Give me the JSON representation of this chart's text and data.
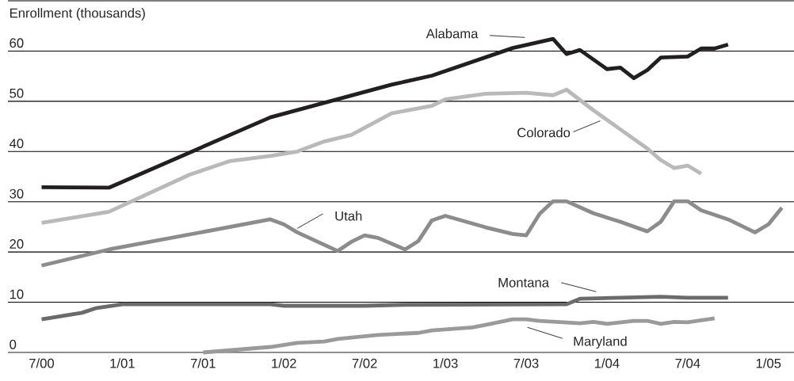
{
  "chart_data": {
    "type": "line",
    "ylabel": "Enrollment (thousands)",
    "xlim": [
      "2000-04-16",
      "2005-02-28"
    ],
    "ylim": [
      0,
      70
    ],
    "xticks": [
      {
        "value": "2000-07",
        "label": "7/00"
      },
      {
        "value": "2001-01",
        "label": "1/01"
      },
      {
        "value": "2001-07",
        "label": "7/01"
      },
      {
        "value": "2002-01",
        "label": "1/02"
      },
      {
        "value": "2002-07",
        "label": "7/02"
      },
      {
        "value": "2003-01",
        "label": "1/03"
      },
      {
        "value": "2003-07",
        "label": "7/03"
      },
      {
        "value": "2004-01",
        "label": "1/04"
      },
      {
        "value": "2004-07",
        "label": "7/04"
      },
      {
        "value": "2005-01",
        "label": "1/05"
      }
    ],
    "yticks": [
      0,
      10,
      20,
      30,
      40,
      50,
      60,
      {
        "value": 70,
        "label": null
      }
    ],
    "grid": "y",
    "series": [
      {
        "name": "Alabama",
        "color": "#231f20",
        "x": [
          "2000-07",
          "2000-12",
          "2001-12",
          "2002-09",
          "2002-12",
          "2003-06",
          "2003-09",
          "2003-10",
          "2003-11",
          "2004-01",
          "2004-02",
          "2004-03",
          "2004-04",
          "2004-05",
          "2004-07",
          "2004-08",
          "2004-09",
          "2004-10"
        ],
        "values": [
          32.9,
          32.8,
          46.8,
          53.3,
          55.1,
          60.6,
          62.4,
          59.4,
          60.2,
          56.4,
          56.7,
          54.6,
          56.2,
          58.7,
          58.9,
          60.5,
          60.5,
          61.3
        ]
      },
      {
        "name": "Colorado",
        "color": "#b8b9bb",
        "x": [
          "2000-07",
          "2000-12",
          "2001-06",
          "2001-09",
          "2001-12",
          "2002-02",
          "2002-04",
          "2002-06",
          "2002-09",
          "2002-12",
          "2003-01",
          "2003-04",
          "2003-07",
          "2003-09",
          "2003-10",
          "2003-12",
          "2004-02",
          "2004-04",
          "2004-05",
          "2004-06",
          "2004-07",
          "2004-08"
        ],
        "values": [
          25.8,
          28.0,
          35.4,
          38.1,
          39.1,
          40.0,
          42.0,
          43.3,
          47.6,
          49.1,
          50.4,
          51.5,
          51.7,
          51.2,
          52.3,
          48.2,
          44.4,
          40.6,
          38.3,
          36.7,
          37.2,
          35.6
        ]
      },
      {
        "name": "Utah",
        "color": "#8c8c8c",
        "x": [
          "2000-07",
          "2000-12",
          "2001-12",
          "2002-01",
          "2002-02",
          "2002-05",
          "2002-06",
          "2002-07",
          "2002-08",
          "2002-10",
          "2002-11",
          "2002-12",
          "2003-01",
          "2003-04",
          "2003-06",
          "2003-07",
          "2003-08",
          "2003-09",
          "2003-10",
          "2003-12",
          "2004-02",
          "2004-04",
          "2004-05",
          "2004-06",
          "2004-07",
          "2004-08",
          "2004-10",
          "2004-12",
          "2005-01",
          "2005-02"
        ],
        "values": [
          17.3,
          20.5,
          26.5,
          25.5,
          23.9,
          20.2,
          22.0,
          23.3,
          22.8,
          20.5,
          22.2,
          26.3,
          27.2,
          24.9,
          23.6,
          23.3,
          27.6,
          30.1,
          30.1,
          27.7,
          26.0,
          24.1,
          26.0,
          30.1,
          30.1,
          28.3,
          26.5,
          23.9,
          25.5,
          28.8
        ]
      },
      {
        "name": "Montana",
        "color": "#6b6b6b",
        "x": [
          "2000-07",
          "2000-10",
          "2000-11",
          "2001-01",
          "2001-12",
          "2002-01",
          "2002-07",
          "2002-10",
          "2003-10",
          "2003-11",
          "2004-05",
          "2004-07",
          "2004-10"
        ],
        "values": [
          6.6,
          7.9,
          8.8,
          9.6,
          9.6,
          9.3,
          9.3,
          9.5,
          9.6,
          10.7,
          11.1,
          10.9,
          10.9
        ]
      },
      {
        "name": "Maryland",
        "color": "#9a9a9a",
        "x": [
          "2001-07",
          "2001-12",
          "2002-02",
          "2002-04",
          "2002-05",
          "2002-08",
          "2002-11",
          "2002-12",
          "2003-03",
          "2003-04",
          "2003-06",
          "2003-07",
          "2003-08",
          "2003-11",
          "2003-12",
          "2004-01",
          "2004-03",
          "2004-04",
          "2004-05",
          "2004-06",
          "2004-07",
          "2004-09"
        ],
        "values": [
          0,
          1.1,
          1.9,
          2.2,
          2.7,
          3.5,
          3.9,
          4.4,
          5.0,
          5.5,
          6.6,
          6.6,
          6.3,
          5.8,
          6.1,
          5.7,
          6.3,
          6.3,
          5.7,
          6.1,
          6.0,
          6.8
        ]
      }
    ]
  }
}
